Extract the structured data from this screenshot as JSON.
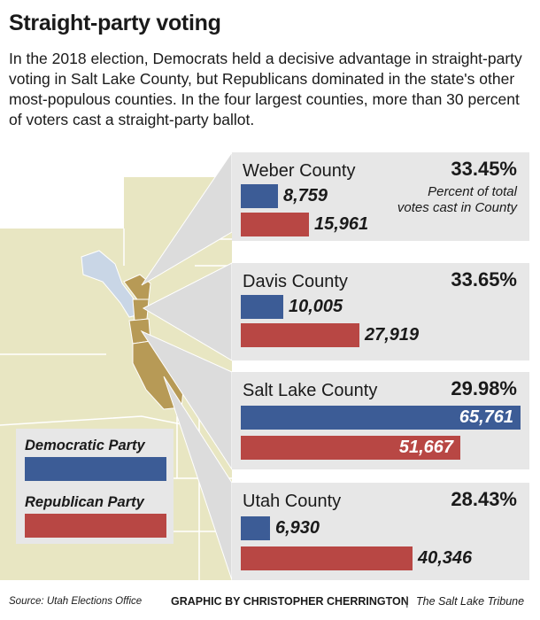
{
  "title": "Straight-party voting",
  "subtitle": "In the 2018 election, Democrats held a decisive advantage in straight-party voting in Salt Lake County, but Republicans dominated in the state's other most-populous counties. In the four largest counties, more than 30 percent of voters cast a straight-party ballot.",
  "colors": {
    "democratic": "#3c5c96",
    "republican": "#b84744",
    "panel": "#e7e7e7",
    "salt_lake_map": "#c9d6e6",
    "other_counties_map": "#b79a56",
    "state_map": "#e8e6c2"
  },
  "legend": {
    "democratic_label": "Democratic Party",
    "republican_label": "Republican Party"
  },
  "percent_note": "Percent of total votes cast in County",
  "footer": {
    "source": "Source: Utah Elections Office",
    "credit": "GRAPHIC BY CHRISTOPHER CHERRINGTON",
    "separator": "|",
    "publication": "The Salt Lake Tribune"
  },
  "chart_data": {
    "type": "bar",
    "orientation": "horizontal",
    "categories": [
      "Weber County",
      "Davis County",
      "Salt Lake County",
      "Utah County"
    ],
    "series": [
      {
        "name": "Democratic Party",
        "values": [
          8759,
          10005,
          65761,
          6930
        ]
      },
      {
        "name": "Republican Party",
        "values": [
          15961,
          27919,
          51667,
          40346
        ]
      }
    ],
    "value_labels": {
      "democratic": [
        "8,759",
        "10,005",
        "65,761",
        "6,930"
      ],
      "republican": [
        "15,961",
        "27,919",
        "51,667",
        "40,346"
      ]
    },
    "percent_labels": [
      "33.45%",
      "33.65%",
      "29.98%",
      "28.43%"
    ],
    "xlim": [
      0,
      65761
    ]
  }
}
